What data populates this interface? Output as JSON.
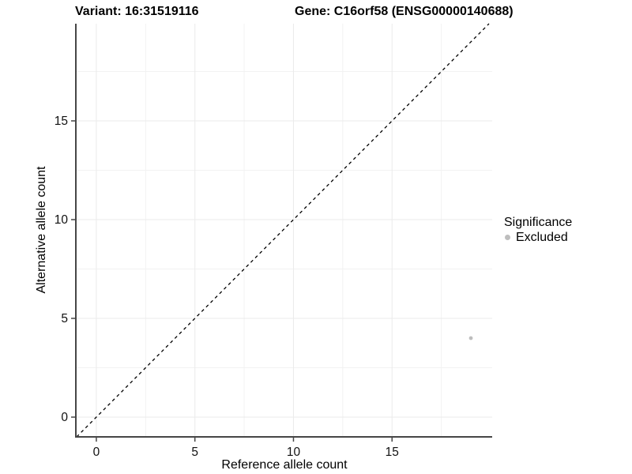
{
  "titles": {
    "variant": "Variant: 16:31519116",
    "gene": "Gene: C16orf58 (ENSG00000140688)"
  },
  "chart_data": {
    "type": "scatter",
    "xlabel": "Reference allele count",
    "ylabel": "Alternative allele count",
    "xlim": [
      -1.04,
      20.08
    ],
    "ylim": [
      -1.0,
      19.92
    ],
    "x_ticks": [
      0,
      5,
      10,
      15
    ],
    "y_ticks": [
      0,
      5,
      10,
      15
    ],
    "x_minor_ticks": [
      2.5,
      7.5,
      12.5,
      17.5
    ],
    "y_minor_ticks": [
      2.5,
      7.5,
      12.5,
      17.5
    ],
    "grid": "major-and-minor",
    "identity_line": {
      "equation": "y = x",
      "style": "dashed",
      "color": "#000000"
    },
    "series": [
      {
        "name": "Excluded",
        "color": "#bebebe",
        "points": [
          {
            "x": 19,
            "y": 4
          }
        ]
      }
    ],
    "legend": {
      "title": "Significance",
      "position": "right",
      "items": [
        {
          "label": "Excluded",
          "color": "#bebebe"
        }
      ]
    }
  },
  "colors": {
    "axis_line": "#464646",
    "tick_mark": "#464646",
    "tick_label": "#111111",
    "grid_major": "#ebebeb",
    "grid_minor": "#f2f2f2",
    "point": "#bebebe"
  }
}
